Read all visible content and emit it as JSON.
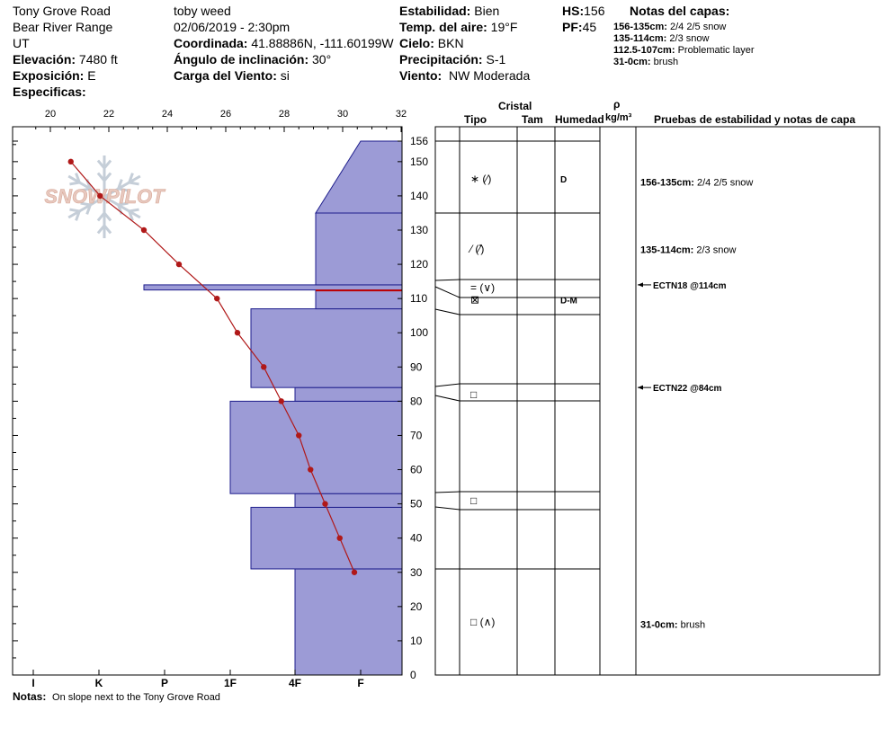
{
  "header": {
    "location": "Tony Grove Road",
    "range": "Bear River Range",
    "state": "UT",
    "elevation_label": "Elevación:",
    "elevation": "7480 ft",
    "aspect_label": "Exposición:",
    "aspect": "E",
    "specifics_label": "Especificas:",
    "observer": "toby weed",
    "datetime": "02/06/2019 - 2:30pm",
    "coord_label": "Coordinada:",
    "coord": "41.88886N, -111.60199W",
    "slope_label": "Ángulo de inclinación:",
    "slope": "30°",
    "wind_load_label": "Carga del Viento:",
    "wind_load": "si",
    "stability_label": "Estabilidad:",
    "stability": "Bien",
    "air_temp_label": "Temp. del aire:",
    "air_temp": "19°F",
    "sky_label": "Cielo:",
    "sky": "BKN",
    "precip_label": "Precipitación:",
    "precip": "S-1",
    "wind_label": "Viento:",
    "wind": "NW Moderada",
    "hs_label": "HS:",
    "hs": "156",
    "pf_label": "PF:",
    "pf": "45",
    "layer_notes_title": "Notas del capas:",
    "layer_notes": [
      {
        "range": "156-135cm:",
        "text": "2/4 2/5 snow"
      },
      {
        "range": "135-114cm:",
        "text": "2/3 snow"
      },
      {
        "range": "112.5-107cm:",
        "text": "Problematic layer"
      },
      {
        "range": "31-0cm:",
        "text": "brush"
      }
    ]
  },
  "columns": {
    "crystal": "Cristal",
    "type": "Tipo",
    "size": "Tam",
    "moisture": "Humedad",
    "density_symbol": "ρ",
    "density_unit": "kg/m³",
    "tests": "Pruebas de estabilidad y notas de capa"
  },
  "logo": {
    "text": "SNOWPILOT",
    "colors": {
      "text": "#e8c9bf",
      "flake": "#c5ced8"
    }
  },
  "chart_data": {
    "type": "snow-profile",
    "temp_axis": {
      "ticks": [
        20,
        22,
        24,
        26,
        28,
        30,
        32
      ],
      "range": [
        20,
        32
      ]
    },
    "height_axis": {
      "ticks": [
        0,
        10,
        20,
        30,
        40,
        50,
        60,
        70,
        80,
        90,
        100,
        110,
        120,
        130,
        140,
        150,
        156
      ],
      "range": [
        0,
        156
      ]
    },
    "hardness_axis": {
      "ticks": [
        "I",
        "K",
        "P",
        "1F",
        "4F",
        "F"
      ]
    },
    "temperature_profile": [
      {
        "h": 150,
        "t": 20.7
      },
      {
        "h": 140,
        "t": 21.7
      },
      {
        "h": 130,
        "t": 23.2
      },
      {
        "h": 120,
        "t": 24.4
      },
      {
        "h": 110,
        "t": 25.7
      },
      {
        "h": 100,
        "t": 26.4
      },
      {
        "h": 90,
        "t": 27.3
      },
      {
        "h": 80,
        "t": 27.9
      },
      {
        "h": 70,
        "t": 28.5
      },
      {
        "h": 60,
        "t": 28.9
      },
      {
        "h": 50,
        "t": 29.4
      },
      {
        "h": 40,
        "t": 29.9
      },
      {
        "h": 30,
        "t": 30.4
      }
    ],
    "hardness_layers": [
      {
        "bottom": 0,
        "top": 31,
        "hardness": "4F"
      },
      {
        "bottom": 31,
        "top": 49,
        "hardness": "1F+"
      },
      {
        "bottom": 49,
        "top": 53,
        "hardness": "4F"
      },
      {
        "bottom": 53,
        "top": 80,
        "hardness": "1F"
      },
      {
        "bottom": 80,
        "top": 84,
        "hardness": "4F"
      },
      {
        "bottom": 84,
        "top": 107,
        "hardness": "1F+"
      },
      {
        "bottom": 107,
        "top": 112.5,
        "hardness": "4F-"
      },
      {
        "bottom": 112.5,
        "top": 114,
        "hardness": "P-"
      },
      {
        "bottom": 114,
        "top": 135,
        "hardness": "4F-"
      },
      {
        "bottom": 135,
        "top": 156,
        "hardness": "4F- to F+",
        "top_hardness": "F+"
      }
    ],
    "layer_boundaries": [
      156,
      135,
      114,
      112.5,
      107,
      84,
      80,
      53,
      49,
      31,
      0
    ],
    "crystals": [
      {
        "h": 145,
        "type": "∗ (⁄)",
        "moisture": "D"
      },
      {
        "h": 124.5,
        "type": "⁄ (⁄̽)",
        "moisture": ""
      },
      {
        "h": 113.2,
        "type": "= (∨)",
        "moisture": ""
      },
      {
        "h": 109.7,
        "type": "⊠",
        "moisture": "D-M"
      },
      {
        "h": 82,
        "type": "□",
        "moisture": ""
      },
      {
        "h": 51,
        "type": "□",
        "moisture": ""
      },
      {
        "h": 15.5,
        "type": "□ (∧)",
        "moisture": ""
      }
    ],
    "layer_notes": [
      {
        "h": 144,
        "range": "156-135cm:",
        "text": "2/4 2/5 snow"
      },
      {
        "h": 124.3,
        "range": "135-114cm:",
        "text": "2/3 snow"
      },
      {
        "h": 14.8,
        "range": "31-0cm:",
        "text": "brush"
      }
    ],
    "stability_tests": [
      {
        "h": 114,
        "label": "ECTN18 @114cm"
      },
      {
        "h": 84,
        "label": "ECTN22 @84cm"
      }
    ],
    "colors": {
      "layer_fill": "#9c9bd6",
      "layer_stroke": "#1e1e8c",
      "temp_line": "#b01818",
      "problem_layer": "#c00000"
    }
  },
  "notes_label": "Notas:",
  "notes": "On slope next to the Tony Grove Road"
}
